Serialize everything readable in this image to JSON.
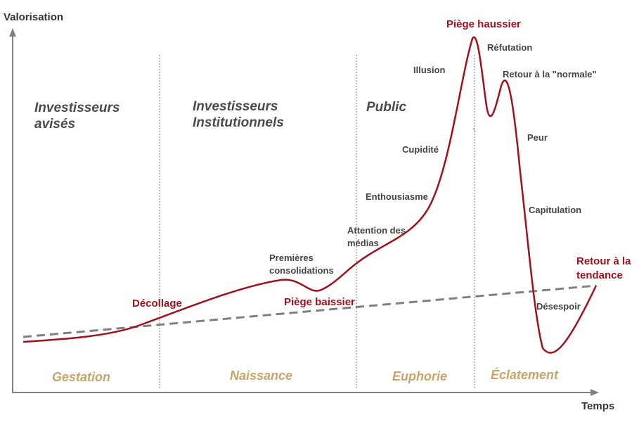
{
  "axes": {
    "y_label": "Valorisation",
    "x_label": "Temps"
  },
  "colors": {
    "curve": "#a0101e",
    "trend": "#808080",
    "axis": "#808080",
    "divider": "#777777",
    "phase": "#c6a56a",
    "actor": "#4a4a4a",
    "key_event": "#a0101e",
    "step": "#444444"
  },
  "actors": [
    {
      "line1": "Investisseurs",
      "line2": "avisés"
    },
    {
      "line1": "Investisseurs",
      "line2": "Institutionnels"
    },
    {
      "line1": "Public",
      "line2": ""
    }
  ],
  "phases": [
    "Gestation",
    "Naissance",
    "Euphorie",
    "Éclatement"
  ],
  "key_events": {
    "decollage": "Décollage",
    "piege_baissier": "Piège baissier",
    "piege_haussier": "Piège haussier",
    "retour_tendance": {
      "line1": "Retour à la",
      "line2": "tendance"
    }
  },
  "steps": {
    "premieres_consolidations": {
      "line1": "Premières",
      "line2": "consolidations"
    },
    "attention_medias": {
      "line1": "Attention des",
      "line2": "médias"
    },
    "enthousiasme": "Enthousiasme",
    "cupidite": "Cupidité",
    "illusion": "Illusion",
    "refutation": "Réfutation",
    "retour_normale": "Retour à la \"normale\"",
    "peur": "Peur",
    "capitulation": "Capitulation",
    "desespoir": "Désespoir"
  }
}
